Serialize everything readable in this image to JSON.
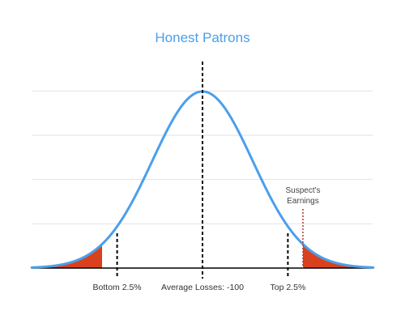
{
  "chart_data": {
    "type": "line",
    "title": "Honest Patrons",
    "xlabel": "",
    "ylabel": "",
    "distribution": "normal",
    "mean": -100,
    "sd": 1,
    "xlim": [
      -3.4,
      3.4
    ],
    "ylim": [
      0,
      0.45
    ],
    "grid": true,
    "gridlines": [
      0.1,
      0.2,
      0.3,
      0.4
    ],
    "series": [
      {
        "type": "density-curve"
      }
    ],
    "markers": [
      {
        "label": "Bottom 2.5%",
        "z": -1.7
      },
      {
        "label": "Average Losses: -100",
        "z": 0
      },
      {
        "label": "Top 2.5%",
        "z": 1.7
      }
    ],
    "tail_regions": [
      {
        "from": -3.4,
        "to": -2.0
      },
      {
        "from": 2.0,
        "to": 3.4
      }
    ],
    "suspect": {
      "label_line1": "Suspect's",
      "label_line2": "Earnings",
      "z": 2.0
    },
    "colors": {
      "curve": "#4A9FEB",
      "title": "#4A9FEB",
      "tail": "#D9411E",
      "suspect_line": "#B5362B",
      "grid": "#E2E2E2",
      "axis": "#000000",
      "marker": "#000000"
    }
  }
}
